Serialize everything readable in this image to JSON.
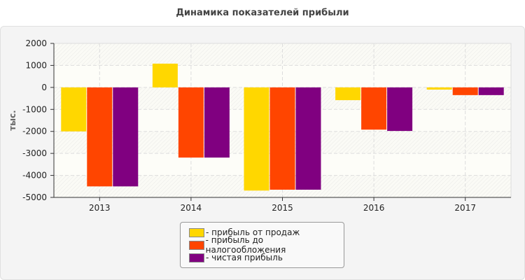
{
  "chart_data": {
    "type": "bar",
    "title": "Динамика показателей прибыли",
    "ylabel": "тыс.",
    "xlabel": "",
    "categories": [
      "2013",
      "2014",
      "2015",
      "2016",
      "2017"
    ],
    "ylim": [
      -5000,
      2000
    ],
    "yticks": [
      "2000",
      "1000",
      "0",
      "-1000",
      "-2000",
      "-3000",
      "-4000",
      "-5000"
    ],
    "grid": true,
    "legend_position": "bottom",
    "series": [
      {
        "name": "- прибыль от продаж",
        "color": "#FFD700",
        "values": [
          -2000,
          1080,
          -4690,
          -580,
          -100
        ]
      },
      {
        "name": "- прибыль до налогообложения",
        "color": "#FF4500",
        "values": [
          -4500,
          -3190,
          -4650,
          -1920,
          -350
        ]
      },
      {
        "name": "- чистая прибыль",
        "color": "#800080",
        "values": [
          -4500,
          -3190,
          -4650,
          -1980,
          -350
        ]
      }
    ]
  }
}
